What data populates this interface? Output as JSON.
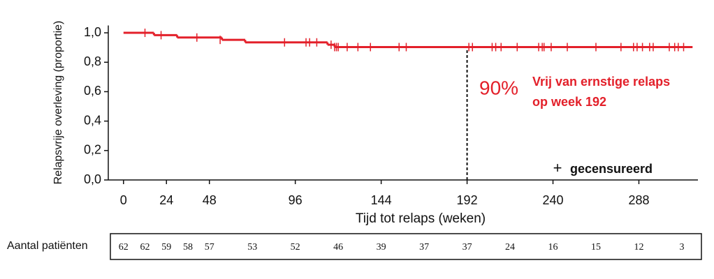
{
  "chart_data": {
    "type": "kaplan-meier",
    "xlabel": "Tijd tot relaps (weken)",
    "ylabel": "Relapsvrije overleving (proportie)",
    "xlim": [
      -8.5,
      321
    ],
    "ylim": [
      0,
      1.05
    ],
    "xticks": [
      0,
      24,
      48,
      96,
      144,
      192,
      240,
      288
    ],
    "yticks": [
      {
        "value": 0,
        "label": "0,0"
      },
      {
        "value": 0.2,
        "label": "0,2"
      },
      {
        "value": 0.4,
        "label": "0,4"
      },
      {
        "value": 0.6,
        "label": "0,6"
      },
      {
        "value": 0.8,
        "label": "0,8"
      },
      {
        "value": 1.0,
        "label": "1,0"
      }
    ],
    "color": "#e3202a",
    "series": [
      {
        "x": [
          0,
          17,
          30,
          55,
          68,
          114,
          118,
          318
        ],
        "values": [
          1.0,
          0.984,
          0.968,
          0.952,
          0.935,
          0.919,
          0.903,
          0.903
        ]
      }
    ],
    "censored": {
      "x": [
        12,
        21,
        41,
        54,
        90,
        102,
        104,
        108,
        116,
        118,
        119,
        120,
        125,
        131,
        138,
        154,
        158,
        193,
        195,
        206,
        208,
        211,
        220,
        232,
        234,
        235,
        239,
        248,
        264,
        278,
        285,
        287,
        290,
        294,
        296,
        305,
        308,
        310,
        313
      ],
      "values": [
        1.0,
        0.984,
        0.968,
        0.952,
        0.935,
        0.935,
        0.935,
        0.935,
        0.919,
        0.903,
        0.903,
        0.903,
        0.903,
        0.903,
        0.903,
        0.903,
        0.903,
        0.903,
        0.903,
        0.903,
        0.903,
        0.903,
        0.903,
        0.903,
        0.903,
        0.903,
        0.903,
        0.903,
        0.903,
        0.903,
        0.903,
        0.903,
        0.903,
        0.903,
        0.903,
        0.903,
        0.903,
        0.903,
        0.903
      ]
    },
    "reference_line": {
      "x": 192,
      "y": 0.9
    },
    "annotation": {
      "value": "90%",
      "lines": [
        "Vrij van ernstige relaps",
        "op week 192"
      ]
    },
    "legend": {
      "symbol": "+",
      "label": "gecensureerd",
      "position": "lower right"
    },
    "at_risk": {
      "label": "Aantal patiënten",
      "x": [
        0,
        12,
        24,
        36,
        48,
        72,
        96,
        120,
        144,
        168,
        192,
        216,
        240,
        264,
        288,
        312
      ],
      "values": [
        62,
        62,
        59,
        58,
        57,
        53,
        52,
        46,
        39,
        37,
        37,
        24,
        16,
        15,
        12,
        3
      ]
    }
  }
}
